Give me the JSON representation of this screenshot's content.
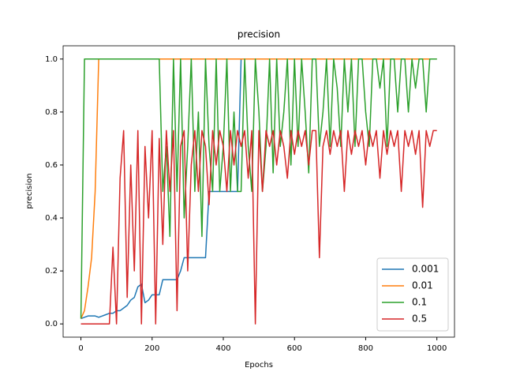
{
  "chart_data": {
    "type": "line",
    "title": "precision",
    "xlabel": "Epochs",
    "ylabel": "precision",
    "x": [
      0,
      10,
      20,
      30,
      40,
      50,
      60,
      70,
      80,
      90,
      100,
      110,
      120,
      130,
      140,
      150,
      160,
      170,
      180,
      190,
      200,
      210,
      220,
      230,
      240,
      250,
      260,
      270,
      280,
      290,
      300,
      310,
      320,
      330,
      340,
      350,
      360,
      370,
      380,
      390,
      400,
      410,
      420,
      430,
      440,
      450,
      460,
      470,
      480,
      490,
      500,
      510,
      520,
      530,
      540,
      550,
      560,
      570,
      580,
      590,
      600,
      610,
      620,
      630,
      640,
      650,
      660,
      670,
      680,
      690,
      700,
      710,
      720,
      730,
      740,
      750,
      760,
      770,
      780,
      790,
      800,
      810,
      820,
      830,
      840,
      850,
      860,
      870,
      880,
      890,
      900,
      910,
      920,
      930,
      940,
      950,
      960,
      970,
      980,
      990,
      1000
    ],
    "series": [
      {
        "name": "0.001",
        "color": "#1f77b4",
        "values": [
          0.02,
          0.025,
          0.03,
          0.03,
          0.03,
          0.025,
          0.03,
          0.035,
          0.04,
          0.04,
          0.05,
          0.05,
          0.06,
          0.07,
          0.09,
          0.1,
          0.14,
          0.15,
          0.08,
          0.09,
          0.11,
          0.11,
          0.11,
          0.167,
          0.167,
          0.167,
          0.167,
          0.167,
          0.2,
          0.25,
          0.25,
          0.25,
          0.25,
          0.25,
          0.25,
          0.25,
          0.5,
          0.5,
          0.5,
          0.5,
          0.5,
          0.5,
          0.5,
          0.5,
          0.5,
          1,
          1,
          1,
          1,
          1,
          1,
          1,
          1,
          1,
          1,
          1,
          1,
          1,
          1,
          1,
          1,
          1,
          1,
          1,
          1,
          1,
          1,
          1,
          1,
          1,
          1,
          1,
          1,
          1,
          1,
          1,
          1,
          1,
          1,
          1,
          1,
          1,
          1,
          1,
          1,
          1,
          1,
          1,
          1,
          1,
          1,
          1,
          1,
          1,
          1,
          1,
          1,
          1,
          1,
          1,
          1
        ]
      },
      {
        "name": "0.01",
        "color": "#ff7f0e",
        "values": [
          0.02,
          0.05,
          0.14,
          0.25,
          0.5,
          1,
          1,
          1,
          1,
          1,
          1,
          1,
          1,
          1,
          1,
          1,
          1,
          1,
          1,
          1,
          1,
          1,
          1,
          1,
          1,
          1,
          1,
          1,
          1,
          1,
          1,
          1,
          1,
          1,
          1,
          1,
          1,
          1,
          1,
          1,
          1,
          1,
          1,
          1,
          1,
          1,
          1,
          1,
          1,
          1,
          1,
          1,
          1,
          1,
          1,
          1,
          1,
          1,
          1,
          1,
          1,
          1,
          1,
          1,
          1,
          1,
          1,
          1,
          1,
          1,
          1,
          1,
          1,
          1,
          1,
          1,
          1,
          1,
          1,
          1,
          1,
          1,
          1,
          1,
          1,
          1,
          1,
          1,
          1,
          1,
          1,
          1,
          1,
          1,
          1,
          1,
          1,
          1,
          1,
          1,
          1
        ]
      },
      {
        "name": "0.1",
        "color": "#2ca02c",
        "values": [
          0.02,
          1,
          1,
          1,
          1,
          1,
          1,
          1,
          1,
          1,
          1,
          1,
          1,
          1,
          1,
          1,
          1,
          1,
          1,
          1,
          1,
          1,
          1,
          0.5,
          0.67,
          0.33,
          1,
          0.5,
          1,
          0.4,
          0.67,
          1,
          0.5,
          0.8,
          0.33,
          1,
          0.67,
          0.5,
          1,
          0.5,
          0.67,
          1,
          0.5,
          0.8,
          0.5,
          0.5,
          1,
          0.67,
          0.5,
          1,
          0.8,
          0.5,
          0.67,
          1,
          0.57,
          1,
          0.67,
          0.8,
          1,
          0.6,
          1,
          0.67,
          1,
          0.8,
          0.57,
          1,
          1,
          0.67,
          0.8,
          1,
          0.67,
          1,
          0.89,
          0.67,
          1,
          0.8,
          1,
          0.67,
          1,
          1,
          0.8,
          0.67,
          1,
          1,
          0.89,
          1,
          0.67,
          1,
          1,
          0.8,
          1,
          1,
          0.8,
          1,
          0.89,
          1,
          1,
          0.8,
          1,
          1,
          1
        ]
      },
      {
        "name": "0.5",
        "color": "#d62728",
        "values": [
          0,
          0,
          0,
          0,
          0,
          0,
          0,
          0,
          0,
          0.29,
          0,
          0.55,
          0.73,
          0.1,
          0.6,
          0.2,
          0.73,
          0,
          0.67,
          0.4,
          0.73,
          0,
          0.7,
          0.3,
          0.73,
          0.5,
          0.73,
          0.05,
          0.67,
          0.73,
          0.2,
          0.6,
          0.73,
          0.5,
          0.73,
          0.67,
          0.45,
          0.73,
          0.6,
          0.73,
          0.67,
          0.5,
          0.73,
          0.6,
          0.73,
          0.67,
          0.73,
          0.55,
          0.73,
          0,
          0.73,
          0.5,
          0.73,
          0.67,
          0.73,
          0.6,
          0.73,
          0.67,
          0.55,
          0.73,
          0.64,
          0.73,
          0.67,
          0.73,
          0.6,
          0.73,
          0.73,
          0.25,
          0.67,
          0.73,
          0.64,
          0.73,
          0.67,
          0.73,
          0.5,
          0.73,
          0.64,
          0.73,
          0.67,
          0.73,
          0.6,
          0.73,
          0.67,
          0.73,
          0.55,
          0.73,
          0.64,
          0.73,
          0.67,
          0.73,
          0.5,
          0.73,
          0.67,
          0.73,
          0.64,
          0.73,
          0.44,
          0.73,
          0.67,
          0.73,
          0.73
        ]
      }
    ],
    "xlim": [
      -50,
      1049.5
    ],
    "ylim": [
      -0.05,
      1.05
    ],
    "xticks": [
      0,
      200,
      400,
      600,
      800,
      1000
    ],
    "yticks": [
      {
        "value": 0,
        "label": "0.0"
      },
      {
        "value": 0.2,
        "label": "0.2"
      },
      {
        "value": 0.4,
        "label": "0.4"
      },
      {
        "value": 0.6,
        "label": "0.6"
      },
      {
        "value": 0.8,
        "label": "0.8"
      },
      {
        "value": 1,
        "label": "1.0"
      }
    ],
    "legend": "lower right"
  }
}
